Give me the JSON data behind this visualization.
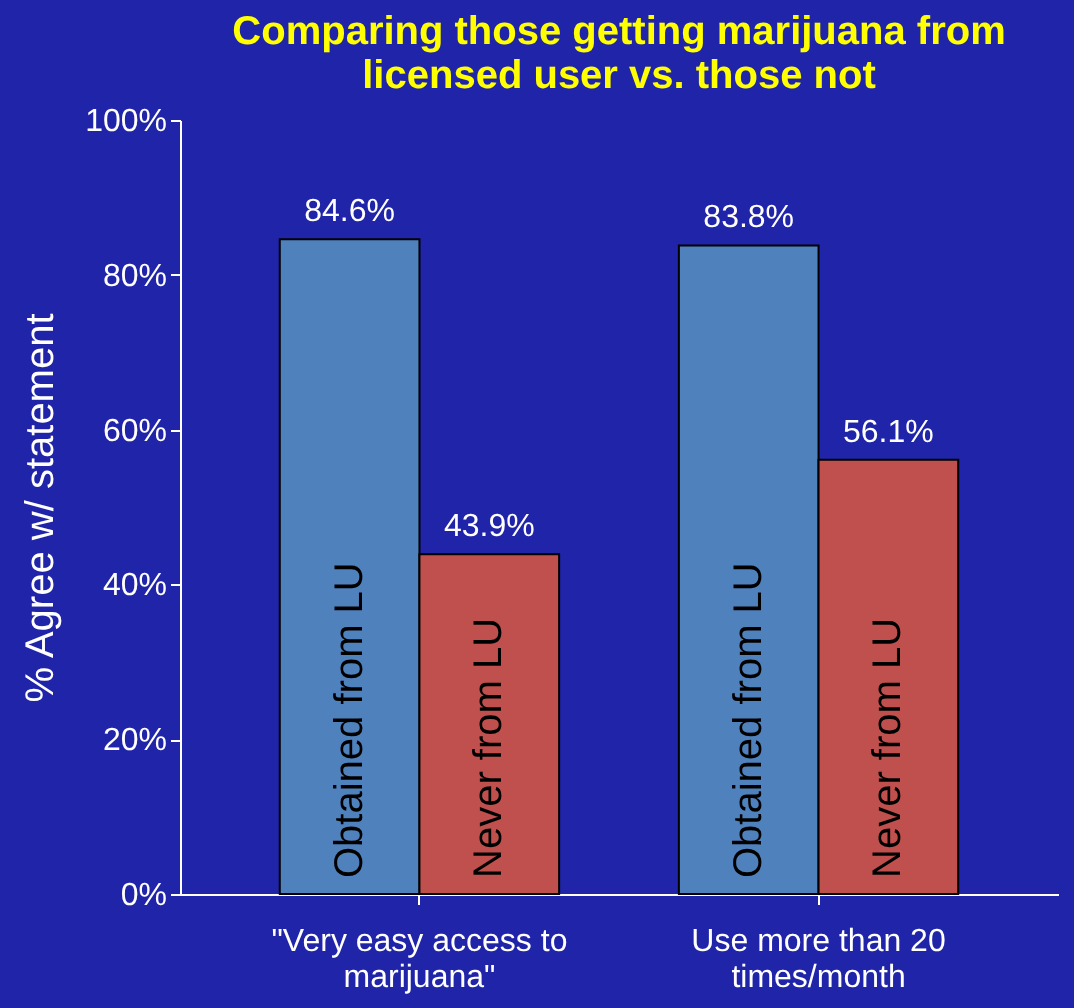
{
  "chart_data": {
    "type": "bar",
    "title": "Comparing those getting marijuana from licensed user vs. those not",
    "ylabel": "% Agree w/ statement",
    "categories": [
      "\"Very easy access to marijuana\"",
      "Use more than 20 times/month"
    ],
    "series": [
      {
        "name": "Obtained from LU",
        "color": "#4f81bd",
        "values": [
          84.6,
          83.8
        ],
        "value_labels": [
          "84.6%",
          "83.8%"
        ]
      },
      {
        "name": "Never from LU",
        "color": "#c0504d",
        "values": [
          43.9,
          56.1
        ],
        "value_labels": [
          "43.9%",
          "56.1%"
        ]
      }
    ],
    "ylim": [
      0,
      100
    ],
    "yticks": [
      {
        "value": 0,
        "label": "0%"
      },
      {
        "value": 20,
        "label": "20%"
      },
      {
        "value": 40,
        "label": "40%"
      },
      {
        "value": 60,
        "label": "60%"
      },
      {
        "value": 80,
        "label": "80%"
      },
      {
        "value": 100,
        "label": "100%"
      }
    ],
    "grid": false,
    "legend": false
  }
}
